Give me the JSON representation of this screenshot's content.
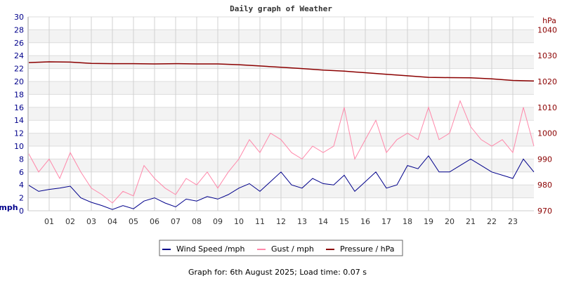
{
  "chart_data": {
    "type": "line",
    "title": "Daily graph of Weather",
    "left_axis": {
      "label": "mph",
      "ylim": [
        0,
        30
      ],
      "ticks": [
        "0",
        "2",
        "4",
        "6",
        "8",
        "10",
        "12",
        "14",
        "16",
        "18",
        "20",
        "22",
        "24",
        "26",
        "28",
        "30"
      ]
    },
    "right_axis": {
      "label": "hPa",
      "ylim": [
        970,
        1045
      ],
      "ticks": [
        "970",
        "980",
        "990",
        "1000",
        "1010",
        "1020",
        "1030",
        "1040"
      ]
    },
    "x_ticks": [
      "01",
      "02",
      "03",
      "04",
      "05",
      "06",
      "07",
      "08",
      "09",
      "10",
      "11",
      "12",
      "13",
      "14",
      "15",
      "16",
      "17",
      "18",
      "19",
      "20",
      "21",
      "22",
      "23"
    ],
    "xlim_hours": [
      0,
      24
    ],
    "grid": true,
    "legend_placement": "bottom-center",
    "series": [
      {
        "name": "Wind Speed /mph",
        "axis": "left",
        "color": "#00008b",
        "x_step_hours": 0.5,
        "values": [
          4,
          3,
          3.3,
          3.5,
          3.8,
          2,
          1.3,
          0.8,
          0.2,
          0.8,
          0.3,
          1.5,
          2,
          1.2,
          0.6,
          1.8,
          1.5,
          2.2,
          1.8,
          2.5,
          3.5,
          4.2,
          3,
          4.5,
          6,
          4,
          3.5,
          5,
          4.2,
          4,
          5.5,
          3,
          4.5,
          6,
          3.5,
          4,
          7,
          6.5,
          8.5,
          6,
          6,
          7,
          8,
          7,
          6,
          5.5,
          5,
          8,
          6
        ]
      },
      {
        "name": "Gust / mph",
        "axis": "left",
        "color": "#ff88aa",
        "x_step_hours": 0.5,
        "values": [
          9,
          6,
          8,
          5,
          9,
          6,
          3.5,
          2.5,
          1.2,
          3,
          2.3,
          7,
          5,
          3.5,
          2.5,
          5,
          4,
          6,
          3.5,
          6,
          8,
          11,
          9,
          12,
          11,
          9,
          8,
          10,
          9,
          10,
          16,
          8,
          11,
          14,
          9,
          11,
          12,
          11,
          16,
          11,
          12,
          17,
          13,
          11,
          10,
          11,
          9,
          16,
          10
        ]
      },
      {
        "name": "Pressure / hPa",
        "axis": "right",
        "color": "#8b0000",
        "x_step_hours": 1,
        "values": [
          1027.3,
          1027.6,
          1027.5,
          1027.0,
          1026.9,
          1026.9,
          1026.8,
          1026.9,
          1026.8,
          1026.8,
          1026.5,
          1026.0,
          1025.5,
          1025.0,
          1024.4,
          1024.0,
          1023.4,
          1022.8,
          1022.2,
          1021.6,
          1021.5,
          1021.4,
          1021.0,
          1020.4,
          1020.2
        ]
      }
    ]
  },
  "footer": "Graph for: 6th August 2025; Load time: 0.07 s"
}
